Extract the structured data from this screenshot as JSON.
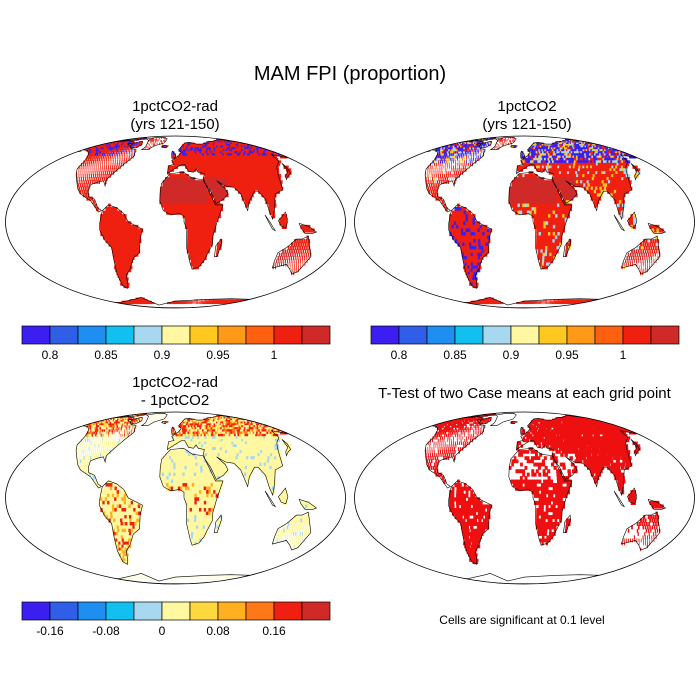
{
  "title": "MAM FPI (proportion)",
  "panels": [
    {
      "id": "rad",
      "title_line1": "1pctCO2-rad",
      "title_line2": "(yrs 121-150)",
      "scheme": "abs"
    },
    {
      "id": "ctl",
      "title_line1": "1pctCO2",
      "title_line2": "(yrs 121-150)",
      "scheme": "abs"
    },
    {
      "id": "diff",
      "title_line1": "1pctCO2-rad",
      "title_line2": "- 1pctCO2",
      "scheme": "diff"
    },
    {
      "id": "ttest",
      "title_line1": "T-Test of two Case means at each grid point",
      "title_line2": "",
      "scheme": "sig"
    }
  ],
  "colorbar_abs": {
    "colors": [
      "#3b1ef0",
      "#2f5ee8",
      "#1e8ef0",
      "#12c0f0",
      "#a8d8f0",
      "#fff8a0",
      "#ffc820",
      "#ff9a18",
      "#ff6010",
      "#f02010",
      "#d02a28"
    ],
    "tick_labels": [
      "0.8",
      "0.85",
      "0.9",
      "0.95",
      "1"
    ]
  },
  "colorbar_diff": {
    "colors": [
      "#3b1ef0",
      "#2f5ee8",
      "#1e8ef0",
      "#12c0f0",
      "#a8d8f0",
      "#fff8a0",
      "#ffd840",
      "#ffb020",
      "#ff7818",
      "#f02010",
      "#d02a28"
    ],
    "tick_labels": [
      "-0.16",
      "-0.08",
      "0",
      "0.08",
      "0.16"
    ]
  },
  "significance_color": "#ee1010",
  "significance_note": "Cells are significant at 0.1 level"
}
